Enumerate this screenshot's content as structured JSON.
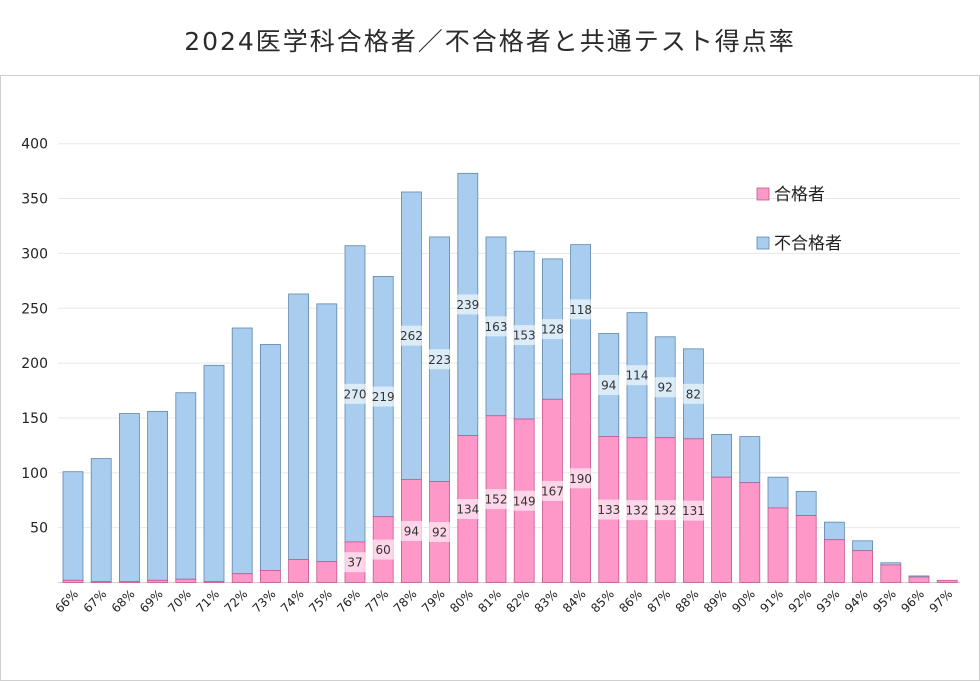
{
  "title": "2024医学科合格者／不合格者と共通テスト得点率",
  "chart_data": {
    "type": "bar",
    "stacked": true,
    "categories": [
      "66%",
      "67%",
      "68%",
      "69%",
      "70%",
      "71%",
      "72%",
      "73%",
      "74%",
      "75%",
      "76%",
      "77%",
      "78%",
      "79%",
      "80%",
      "81%",
      "82%",
      "83%",
      "84%",
      "85%",
      "86%",
      "87%",
      "88%",
      "89%",
      "90%",
      "91%",
      "92%",
      "93%",
      "94%",
      "95%",
      "96%",
      "97%"
    ],
    "series": [
      {
        "name": "合格者",
        "color": "#fd98c8",
        "values": [
          2,
          1,
          1,
          2,
          3,
          1,
          8,
          11,
          21,
          19,
          37,
          60,
          94,
          92,
          134,
          152,
          149,
          167,
          190,
          133,
          132,
          132,
          131,
          96,
          91,
          68,
          61,
          39,
          29,
          16,
          5,
          2
        ]
      },
      {
        "name": "不合格者",
        "color": "#a8cdee",
        "values": [
          99,
          112,
          153,
          154,
          170,
          197,
          224,
          206,
          242,
          235,
          270,
          219,
          262,
          223,
          239,
          163,
          153,
          128,
          118,
          94,
          114,
          92,
          82,
          39,
          42,
          28,
          22,
          16,
          9,
          2,
          1,
          0
        ]
      }
    ],
    "labeled_categories": [
      "76%",
      "77%",
      "78%",
      "79%",
      "80%",
      "81%",
      "82%",
      "83%",
      "84%",
      "85%",
      "86%",
      "87%",
      "88%"
    ],
    "ylim": [
      0,
      400
    ],
    "yticks": [
      50,
      100,
      150,
      200,
      250,
      300,
      350,
      400
    ],
    "grid": true,
    "legend_position": "top-right"
  }
}
